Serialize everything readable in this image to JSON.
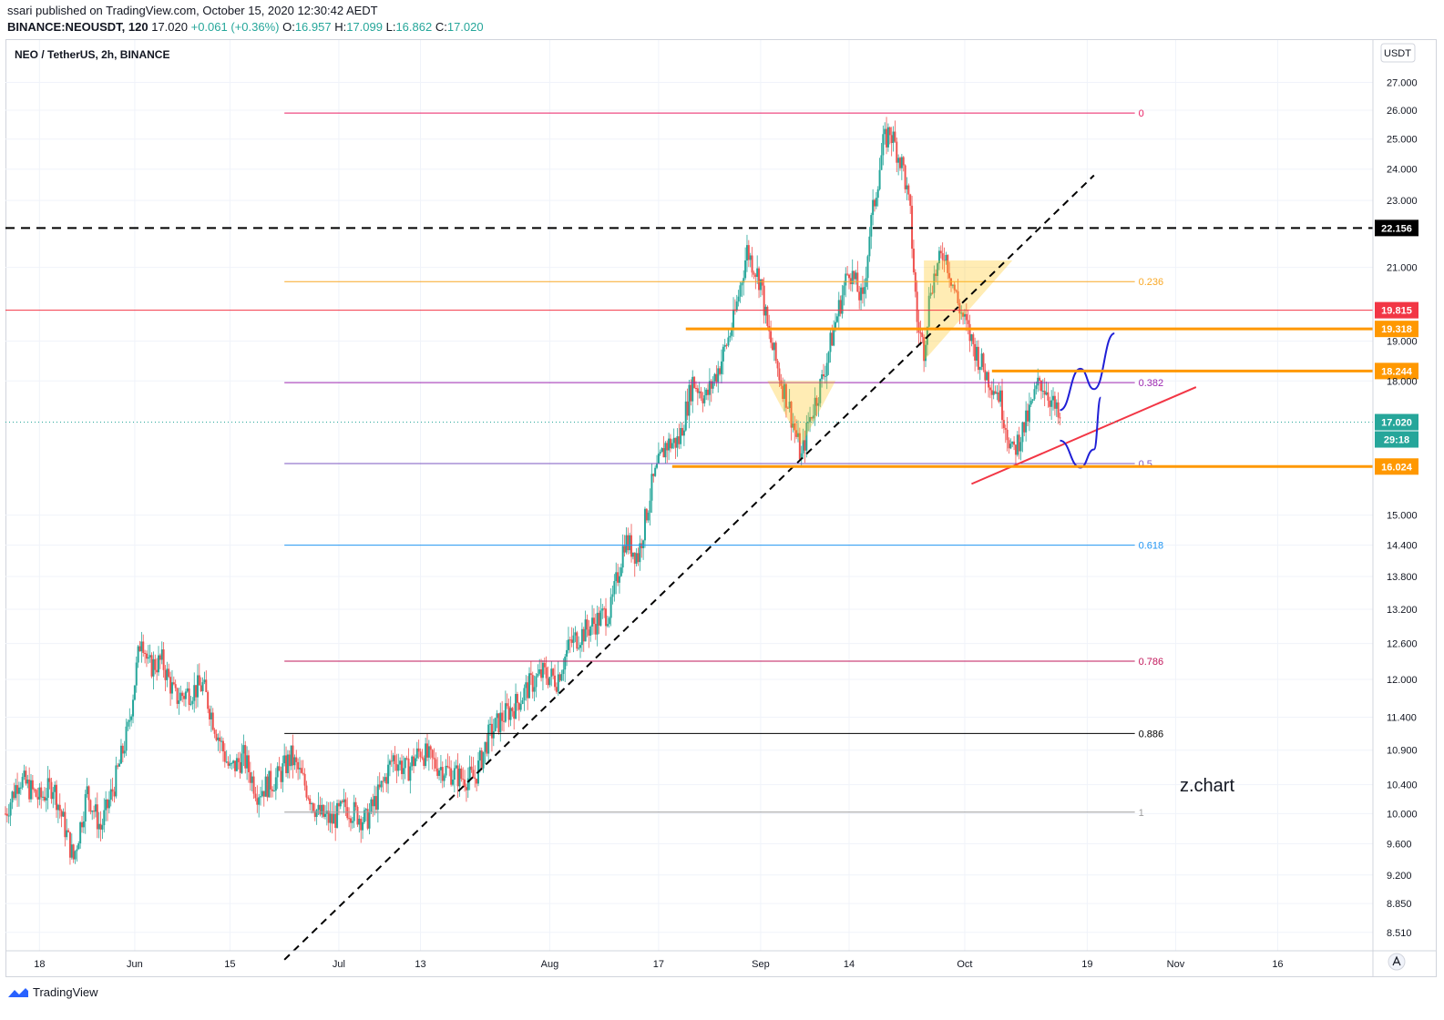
{
  "header": {
    "published_line": "ssari published on TradingView.com, October 15, 2020 12:30:42 AEDT",
    "symbol": "BINANCE:NEOUSDT, 120",
    "last": "17.020",
    "change": "+0.061 (+0.36%)",
    "ohlc_o_label": "O:",
    "ohlc_o": "16.957",
    "ohlc_h_label": "H:",
    "ohlc_h": "17.099",
    "ohlc_l_label": "L:",
    "ohlc_l": "16.862",
    "ohlc_c_label": "C:",
    "ohlc_c": "17.020"
  },
  "legend_title": "NEO / TetherUS, 2h, BINANCE",
  "currency_button": "USDT",
  "watermark": "z.chart",
  "footer": {
    "brand": "TradingView"
  },
  "colors": {
    "up": "#26a69a",
    "down": "#ef5350",
    "fib0": "#e91e63",
    "fib236": "#f9a825",
    "fib382": "#9c27b0",
    "fib5": "#7e57c2",
    "fib618": "#2196f3",
    "fib786": "#c2185b",
    "fib886": "#000000",
    "fib1": "#9e9e9e",
    "orange": "#ff9800",
    "red": "#f23645",
    "blue": "#1f1fd6"
  },
  "chart_data": {
    "type": "candlestick",
    "log_scale": true,
    "y_range": [
      8.3,
      28.6
    ],
    "y_ticks": [
      "27.000",
      "26.000",
      "25.000",
      "24.000",
      "23.000",
      "21.000",
      "19.000",
      "18.000",
      "15.000",
      "14.400",
      "13.800",
      "13.200",
      "12.600",
      "12.000",
      "11.400",
      "10.900",
      "10.400",
      "10.000",
      "9.600",
      "9.200",
      "8.850",
      "8.510"
    ],
    "x_range": [
      "2020-05-13",
      "2020-11-30"
    ],
    "x_ticks": [
      {
        "label": "18",
        "date": "2020-05-18"
      },
      {
        "label": "Jun",
        "date": "2020-06-01"
      },
      {
        "label": "15",
        "date": "2020-06-15"
      },
      {
        "label": "Jul",
        "date": "2020-07-01"
      },
      {
        "label": "13",
        "date": "2020-07-13"
      },
      {
        "label": "Aug",
        "date": "2020-08-01"
      },
      {
        "label": "17",
        "date": "2020-08-17"
      },
      {
        "label": "Sep",
        "date": "2020-09-01"
      },
      {
        "label": "14",
        "date": "2020-09-14"
      },
      {
        "label": "Oct",
        "date": "2020-10-01"
      },
      {
        "label": "19",
        "date": "2020-10-19"
      },
      {
        "label": "Nov",
        "date": "2020-11-01"
      },
      {
        "label": "16",
        "date": "2020-11-16"
      }
    ],
    "price_path": [
      [
        "2020-05-13",
        10.0
      ],
      [
        "2020-05-15",
        10.5
      ],
      [
        "2020-05-18",
        10.2
      ],
      [
        "2020-05-20",
        10.4
      ],
      [
        "2020-05-23",
        9.4
      ],
      [
        "2020-05-25",
        10.3
      ],
      [
        "2020-05-27",
        9.8
      ],
      [
        "2020-05-29",
        10.4
      ],
      [
        "2020-05-31",
        11.2
      ],
      [
        "2020-06-02",
        12.8
      ],
      [
        "2020-06-03",
        12.2
      ],
      [
        "2020-06-05",
        12.3
      ],
      [
        "2020-06-07",
        11.7
      ],
      [
        "2020-06-09",
        11.8
      ],
      [
        "2020-06-11",
        11.9
      ],
      [
        "2020-06-13",
        11.2
      ],
      [
        "2020-06-15",
        10.6
      ],
      [
        "2020-06-17",
        10.8
      ],
      [
        "2020-06-19",
        10.3
      ],
      [
        "2020-06-22",
        10.5
      ],
      [
        "2020-06-24",
        10.8
      ],
      [
        "2020-06-26",
        10.4
      ],
      [
        "2020-06-28",
        10.0
      ],
      [
        "2020-06-30",
        9.9
      ],
      [
        "2020-07-02",
        10.1
      ],
      [
        "2020-07-05",
        9.9
      ],
      [
        "2020-07-07",
        10.3
      ],
      [
        "2020-07-09",
        10.8
      ],
      [
        "2020-07-11",
        10.6
      ],
      [
        "2020-07-13",
        10.9
      ],
      [
        "2020-07-15",
        10.7
      ],
      [
        "2020-07-17",
        10.6
      ],
      [
        "2020-07-19",
        10.5
      ],
      [
        "2020-07-21",
        10.5
      ],
      [
        "2020-07-23",
        11.1
      ],
      [
        "2020-07-25",
        11.4
      ],
      [
        "2020-07-27",
        11.6
      ],
      [
        "2020-07-29",
        11.9
      ],
      [
        "2020-07-31",
        12.1
      ],
      [
        "2020-08-02",
        12.0
      ],
      [
        "2020-08-04",
        12.6
      ],
      [
        "2020-08-06",
        12.8
      ],
      [
        "2020-08-08",
        13.0
      ],
      [
        "2020-08-10",
        13.2
      ],
      [
        "2020-08-12",
        14.5
      ],
      [
        "2020-08-14",
        14.2
      ],
      [
        "2020-08-16",
        15.6
      ],
      [
        "2020-08-18",
        16.5
      ],
      [
        "2020-08-20",
        16.6
      ],
      [
        "2020-08-22",
        18.0
      ],
      [
        "2020-08-24",
        17.6
      ],
      [
        "2020-08-26",
        18.4
      ],
      [
        "2020-08-28",
        19.5
      ],
      [
        "2020-08-30",
        21.5
      ],
      [
        "2020-09-01",
        20.6
      ],
      [
        "2020-09-02",
        19.3
      ],
      [
        "2020-09-04",
        18.0
      ],
      [
        "2020-09-05",
        17.5
      ],
      [
        "2020-09-07",
        16.2
      ],
      [
        "2020-09-08",
        17.0
      ],
      [
        "2020-09-10",
        18.0
      ],
      [
        "2020-09-12",
        19.5
      ],
      [
        "2020-09-14",
        21.0
      ],
      [
        "2020-09-16",
        20.0
      ],
      [
        "2020-09-17",
        22.0
      ],
      [
        "2020-09-19",
        24.8
      ],
      [
        "2020-09-20",
        25.3
      ],
      [
        "2020-09-22",
        24.0
      ],
      [
        "2020-09-23",
        22.5
      ],
      [
        "2020-09-24",
        19.5
      ],
      [
        "2020-09-25",
        18.8
      ],
      [
        "2020-09-26",
        20.5
      ],
      [
        "2020-09-28",
        21.5
      ],
      [
        "2020-09-30",
        20.0
      ],
      [
        "2020-10-02",
        19.0
      ],
      [
        "2020-10-04",
        18.2
      ],
      [
        "2020-10-06",
        17.7
      ],
      [
        "2020-10-08",
        16.3
      ],
      [
        "2020-10-10",
        17.0
      ],
      [
        "2020-10-11",
        17.5
      ],
      [
        "2020-10-12",
        18.0
      ],
      [
        "2020-10-13",
        17.8
      ],
      [
        "2020-10-15",
        17.02
      ]
    ],
    "horizontal_levels": [
      {
        "price": 22.156,
        "label": "22.156",
        "style": "dashed",
        "color": "#000000"
      },
      {
        "price": 19.815,
        "label": "19.815",
        "color": "#f23645"
      },
      {
        "price": 19.318,
        "label": "19.318",
        "color": "#ff9800"
      },
      {
        "price": 18.244,
        "label": "18.244",
        "color": "#ff9800"
      },
      {
        "price": 17.02,
        "label": "17.020",
        "style": "dotted",
        "color": "#26a69a"
      },
      {
        "price": 16.024,
        "label": "16.024",
        "color": "#ff9800"
      }
    ],
    "countdown": "29:18",
    "fibonacci": {
      "start_date": "2020-06-23",
      "end_date": "2020-10-26",
      "high": 25.9,
      "low": 10.02,
      "levels": [
        {
          "ratio": "0",
          "price": 25.9
        },
        {
          "ratio": "0.236",
          "price": 20.6
        },
        {
          "ratio": "0.382",
          "price": 17.96
        },
        {
          "ratio": "0.5",
          "price": 16.09
        },
        {
          "ratio": "0.618",
          "price": 14.4
        },
        {
          "ratio": "0.786",
          "price": 12.3
        },
        {
          "ratio": "0.886",
          "price": 11.15
        },
        {
          "ratio": "1",
          "price": 10.02
        }
      ]
    },
    "trendlines": [
      {
        "from": [
          "2020-06-23",
          8.2
        ],
        "to": [
          "2020-10-20",
          23.8
        ],
        "style": "dashed",
        "color": "#000000"
      },
      {
        "from": [
          "2020-10-02",
          15.65
        ],
        "to": [
          "2020-11-04",
          17.85
        ],
        "color": "#f23645"
      }
    ],
    "triangles": [
      {
        "points": [
          [
            "2020-09-02",
            18.0
          ],
          [
            "2020-09-12",
            18.0
          ],
          [
            "2020-09-07",
            16.5
          ]
        ]
      },
      {
        "points": [
          [
            "2020-09-25",
            21.2
          ],
          [
            "2020-10-08",
            21.2
          ],
          [
            "2020-09-25",
            18.5
          ]
        ]
      }
    ],
    "projections": [
      {
        "points": [
          [
            "2020-10-15",
            17.3
          ],
          [
            "2020-10-18",
            18.3
          ],
          [
            "2020-10-20",
            17.8
          ],
          [
            "2020-10-23",
            19.2
          ]
        ],
        "color": "#1f1fd6"
      },
      {
        "points": [
          [
            "2020-10-15",
            16.6
          ],
          [
            "2020-10-18",
            16.0
          ],
          [
            "2020-10-20",
            16.4
          ],
          [
            "2020-10-21",
            17.6
          ]
        ],
        "color": "#1f1fd6"
      }
    ]
  }
}
